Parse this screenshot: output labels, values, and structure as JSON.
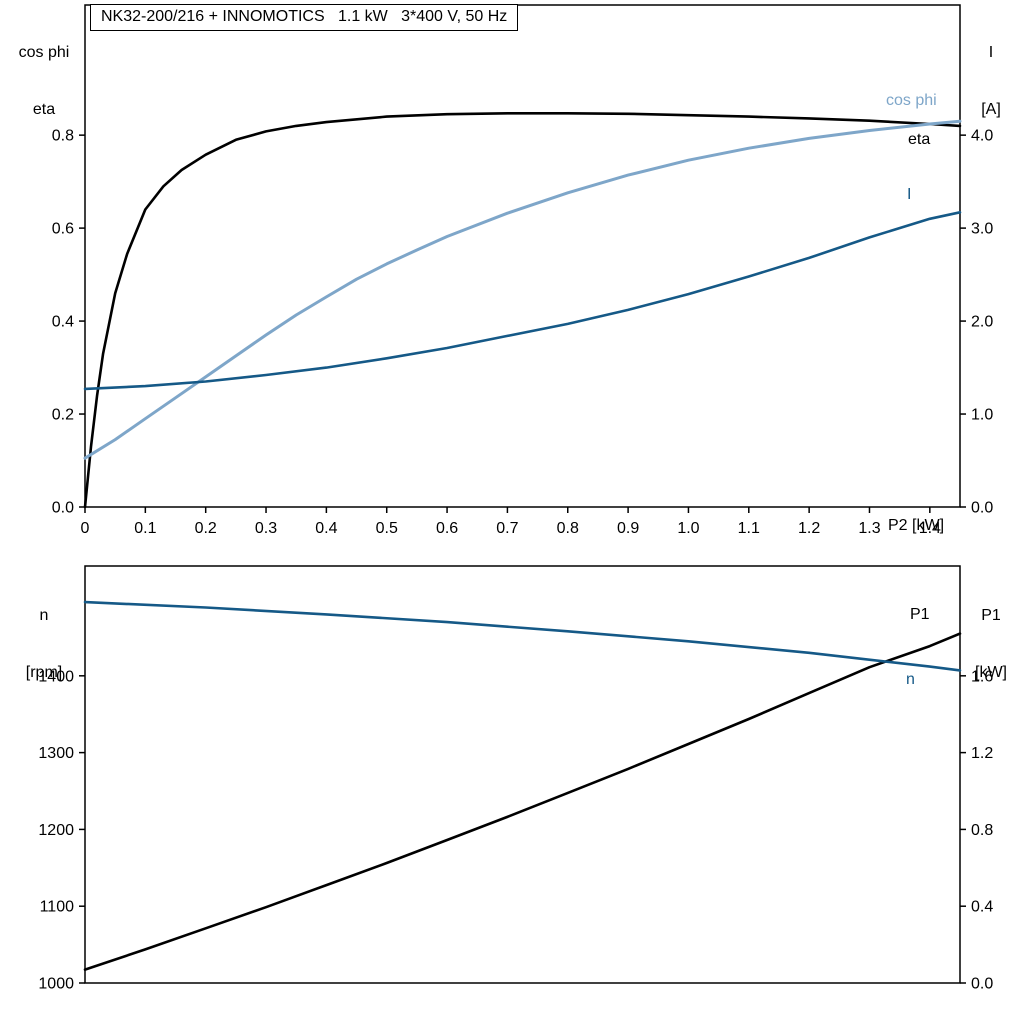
{
  "title_box": {
    "text": "NK32-200/216 + INNOMOTICS   1.1 kW   3*400 V, 50 Hz"
  },
  "axis_headers": {
    "top_left_line1": "cos phi",
    "top_left_line2": "eta",
    "top_right_line1": "I",
    "top_right_line2": "[A]",
    "bottom_left_line1": "n",
    "bottom_left_line2": "[rpm]",
    "bottom_right_line1": "P1",
    "bottom_right_line2": "[kW]",
    "x_label": "P2 [kW]"
  },
  "curve_labels": {
    "cos_phi": "cos phi",
    "eta": "eta",
    "current": "I",
    "p1": "P1",
    "n": "n"
  },
  "colors": {
    "black": "#000000",
    "light_blue": "#7ea6c9",
    "dark_blue": "#155987"
  },
  "chart_data": [
    {
      "type": "line",
      "title": "NK32-200/216 + INNOMOTICS   1.1 kW   3*400 V, 50 Hz",
      "xlabel": "P2 [kW]",
      "xlim": [
        0,
        1.45
      ],
      "grid": false,
      "xticks": [
        0,
        0.1,
        0.2,
        0.3,
        0.4,
        0.5,
        0.6,
        0.7,
        0.8,
        0.9,
        1.0,
        1.1,
        1.2,
        1.3,
        1.4
      ],
      "xtick_labels": [
        "0",
        "0.1",
        "0.2",
        "0.3",
        "0.4",
        "0.5",
        "0.6",
        "0.7",
        "0.8",
        "0.9",
        "1.0",
        "1.1",
        "1.2",
        "1.3",
        "1.4"
      ],
      "y_left": {
        "label": "cos phi / eta",
        "lim": [
          0,
          1.08
        ],
        "ticks": [
          0,
          0.2,
          0.4,
          0.6,
          0.8
        ],
        "tick_labels": [
          "0.0",
          "0.2",
          "0.4",
          "0.6",
          "0.8"
        ]
      },
      "y_right": {
        "label": "I [A]",
        "lim": [
          0,
          5.4
        ],
        "ticks": [
          0,
          1,
          2,
          3,
          4
        ],
        "tick_labels": [
          "0.0",
          "1.0",
          "2.0",
          "3.0",
          "4.0"
        ]
      },
      "series": [
        {
          "name": "eta",
          "axis": "left",
          "color_key": "black",
          "width": 2.6,
          "x": [
            0,
            0.01,
            0.02,
            0.03,
            0.05,
            0.07,
            0.1,
            0.13,
            0.16,
            0.2,
            0.25,
            0.3,
            0.35,
            0.4,
            0.5,
            0.6,
            0.7,
            0.8,
            0.9,
            1.0,
            1.1,
            1.2,
            1.3,
            1.4,
            1.45
          ],
          "y": [
            0,
            0.13,
            0.24,
            0.33,
            0.46,
            0.545,
            0.64,
            0.69,
            0.725,
            0.758,
            0.79,
            0.808,
            0.82,
            0.828,
            0.84,
            0.845,
            0.847,
            0.847,
            0.846,
            0.843,
            0.84,
            0.836,
            0.831,
            0.824,
            0.82
          ]
        },
        {
          "name": "cos phi",
          "axis": "left",
          "color_key": "light_blue",
          "width": 3,
          "x": [
            0,
            0.05,
            0.1,
            0.15,
            0.2,
            0.25,
            0.3,
            0.35,
            0.4,
            0.45,
            0.5,
            0.55,
            0.6,
            0.7,
            0.8,
            0.9,
            1.0,
            1.1,
            1.2,
            1.3,
            1.4,
            1.45
          ],
          "y": [
            0.105,
            0.145,
            0.19,
            0.235,
            0.28,
            0.325,
            0.37,
            0.413,
            0.452,
            0.49,
            0.523,
            0.553,
            0.582,
            0.632,
            0.676,
            0.714,
            0.746,
            0.772,
            0.793,
            0.81,
            0.824,
            0.83
          ]
        },
        {
          "name": "I",
          "axis": "right",
          "color_key": "dark_blue",
          "width": 2.6,
          "x": [
            0,
            0.1,
            0.2,
            0.3,
            0.4,
            0.5,
            0.6,
            0.7,
            0.8,
            0.9,
            1.0,
            1.1,
            1.2,
            1.3,
            1.4,
            1.45
          ],
          "y": [
            1.27,
            1.3,
            1.35,
            1.42,
            1.5,
            1.6,
            1.71,
            1.84,
            1.97,
            2.12,
            2.29,
            2.48,
            2.68,
            2.9,
            3.1,
            3.17
          ]
        }
      ]
    },
    {
      "type": "line",
      "title": "",
      "xlabel": "",
      "xlim": [
        0,
        1.45
      ],
      "grid": false,
      "xticks": [],
      "xtick_labels": [],
      "y_left": {
        "label": "n [rpm]",
        "lim": [
          1000,
          1543
        ],
        "ticks": [
          1000,
          1100,
          1200,
          1300,
          1400
        ],
        "tick_labels": [
          "1000",
          "1100",
          "1200",
          "1300",
          "1400"
        ]
      },
      "y_right": {
        "label": "P1 [kW]",
        "lim": [
          0,
          2.172
        ],
        "ticks": [
          0,
          0.4,
          0.8,
          1.2,
          1.6
        ],
        "tick_labels": [
          "0.0",
          "0.4",
          "0.8",
          "1.2",
          "1.6"
        ]
      },
      "series": [
        {
          "name": "P1",
          "axis": "right",
          "color_key": "black",
          "width": 2.6,
          "x": [
            0,
            0.1,
            0.2,
            0.3,
            0.4,
            0.5,
            0.6,
            0.7,
            0.8,
            0.9,
            1.0,
            1.1,
            1.2,
            1.3,
            1.4,
            1.45
          ],
          "y": [
            0.07,
            0.175,
            0.285,
            0.395,
            0.51,
            0.625,
            0.745,
            0.865,
            0.99,
            1.115,
            1.245,
            1.375,
            1.51,
            1.645,
            1.755,
            1.82
          ]
        },
        {
          "name": "n",
          "axis": "left",
          "color_key": "dark_blue",
          "width": 2.6,
          "x": [
            0,
            0.2,
            0.4,
            0.6,
            0.8,
            1.0,
            1.2,
            1.4,
            1.45
          ],
          "y": [
            1496,
            1489,
            1480,
            1470,
            1458,
            1445,
            1430,
            1412,
            1407
          ]
        }
      ]
    }
  ]
}
